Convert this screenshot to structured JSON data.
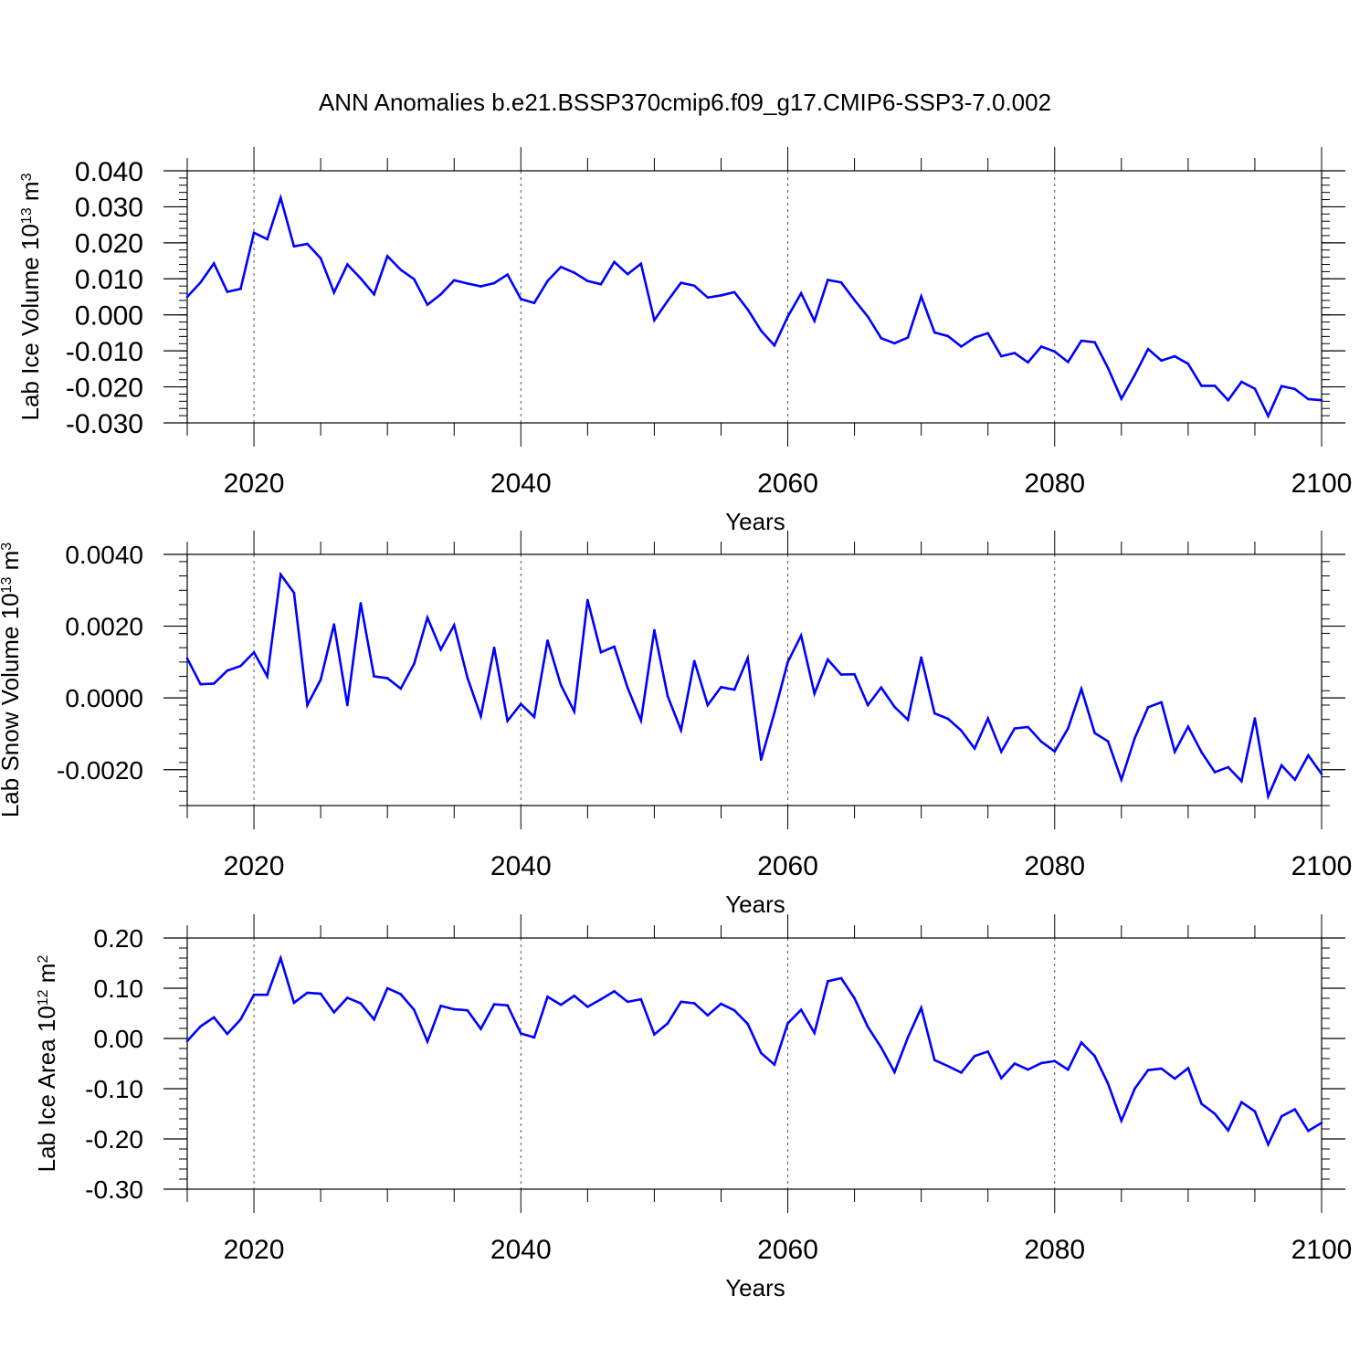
{
  "title": "ANN Anomalies b.e21.BSSP370cmip6.f09_g17.CMIP6-SSP3-7.0.002",
  "line_color": "#0000ff",
  "chart_data": [
    {
      "type": "line",
      "title": "",
      "ylabel": "Lab Ice Volume 10",
      "ylabel_sup1": "13",
      "ylabel_unit": " m",
      "ylabel_sup2": "3",
      "xlabel": "Years",
      "xlim": [
        2015,
        2100
      ],
      "ylim": [
        -0.03,
        0.04
      ],
      "yticks": [
        -0.03,
        -0.02,
        -0.01,
        0.0,
        0.01,
        0.02,
        0.03,
        0.04
      ],
      "ytick_labels": [
        "-0.030",
        "-0.020",
        "-0.010",
        "0.000",
        "0.010",
        "0.020",
        "0.030",
        "0.040"
      ],
      "xticks": [
        2020,
        2040,
        2060,
        2080,
        2100
      ],
      "xtick_labels": [
        "2020",
        "2040",
        "2060",
        "2080",
        "2100"
      ],
      "grid": "vertical dashed at major x ticks",
      "series": [
        {
          "x_start": 2015,
          "values": [
            0.005,
            0.009,
            0.0143,
            0.0064,
            0.0072,
            0.0228,
            0.021,
            0.0325,
            0.019,
            0.0197,
            0.0157,
            0.0062,
            0.014,
            0.0101,
            0.0057,
            0.0163,
            0.0125,
            0.0099,
            0.0028,
            0.0057,
            0.0096,
            0.0087,
            0.0079,
            0.0088,
            0.0112,
            0.0044,
            0.0033,
            0.0094,
            0.0133,
            0.0117,
            0.0094,
            0.0085,
            0.0147,
            0.0113,
            0.0142,
            -0.0015,
            0.0039,
            0.0089,
            0.0081,
            0.0048,
            0.0054,
            0.0063,
            0.0015,
            -0.0044,
            -0.0085,
            -0.0005,
            0.006,
            -0.0017,
            0.0097,
            0.009,
            0.0041,
            -0.0005,
            -0.0065,
            -0.0079,
            -0.0063,
            0.0051,
            -0.0049,
            -0.0059,
            -0.0088,
            -0.0063,
            -0.0051,
            -0.0115,
            -0.0106,
            -0.0132,
            -0.0088,
            -0.0102,
            -0.0131,
            -0.0072,
            -0.0076,
            -0.0148,
            -0.0233,
            -0.0167,
            -0.0095,
            -0.0127,
            -0.0115,
            -0.0136,
            -0.0197,
            -0.0197,
            -0.0237,
            -0.0186,
            -0.0205,
            -0.0281,
            -0.0198,
            -0.0206,
            -0.0234,
            -0.0237
          ]
        }
      ]
    },
    {
      "type": "line",
      "title": "",
      "ylabel": "Lab Snow Volume 10",
      "ylabel_sup1": "13",
      "ylabel_unit": " m",
      "ylabel_sup2": "3",
      "xlabel": "Years",
      "xlim": [
        2015,
        2100
      ],
      "ylim": [
        -0.003,
        0.004
      ],
      "yticks": [
        -0.002,
        0.0,
        0.002,
        0.004
      ],
      "ytick_labels": [
        "-0.0020",
        "0.0000",
        "0.0020",
        "0.0040"
      ],
      "xticks": [
        2020,
        2040,
        2060,
        2080,
        2100
      ],
      "xtick_labels": [
        "2020",
        "2040",
        "2060",
        "2080",
        "2100"
      ],
      "grid": "vertical dashed at major x ticks",
      "series": [
        {
          "x_start": 2015,
          "values": [
            0.0011,
            0.00038,
            0.0004,
            0.00076,
            0.00089,
            0.00127,
            0.0006,
            0.00344,
            0.00293,
            -0.0002,
            0.00051,
            0.00205,
            -0.0002,
            0.00264,
            0.0006,
            0.00055,
            0.00026,
            0.00095,
            0.00224,
            0.00135,
            0.00203,
            0.00056,
            -0.00051,
            0.0014,
            -0.00064,
            -0.00017,
            -0.00053,
            0.0016,
            0.00036,
            -0.00038,
            0.00273,
            0.00127,
            0.00143,
            0.00028,
            -0.00063,
            0.00189,
            5e-05,
            -0.0009,
            0.00103,
            -0.0002,
            0.0003,
            0.00023,
            0.00111,
            -0.00172,
            -0.00041,
            0.001,
            0.00174,
            0.00012,
            0.00107,
            0.00065,
            0.00066,
            -0.0002,
            0.00029,
            -0.00025,
            -0.00061,
            0.00113,
            -0.00043,
            -0.00058,
            -0.00091,
            -0.00141,
            -0.00057,
            -0.0015,
            -0.00085,
            -0.00081,
            -0.00122,
            -0.00149,
            -0.00085,
            0.00025,
            -0.00098,
            -0.00121,
            -0.00228,
            -0.00112,
            -0.00026,
            -0.00012,
            -0.0015,
            -0.0008,
            -0.00151,
            -0.00207,
            -0.00193,
            -0.00232,
            -0.00057,
            -0.00274,
            -0.00188,
            -0.00228,
            -0.0016,
            -0.00212
          ]
        }
      ]
    },
    {
      "type": "line",
      "title": "",
      "ylabel": "Lab Ice Area 10",
      "ylabel_sup1": "12",
      "ylabel_unit": " m",
      "ylabel_sup2": "2",
      "xlabel": "Years",
      "xlim": [
        2015,
        2100
      ],
      "ylim": [
        -0.3,
        0.2
      ],
      "yticks": [
        -0.3,
        -0.2,
        -0.1,
        0.0,
        0.1,
        0.2
      ],
      "ytick_labels": [
        "-0.30",
        "-0.20",
        "-0.10",
        "0.00",
        "0.10",
        "0.20"
      ],
      "xticks": [
        2020,
        2040,
        2060,
        2080,
        2100
      ],
      "xtick_labels": [
        "2020",
        "2040",
        "2060",
        "2080",
        "2100"
      ],
      "grid": "vertical dashed at major x ticks",
      "series": [
        {
          "x_start": 2015,
          "values": [
            -0.005,
            0.024,
            0.042,
            0.009,
            0.038,
            0.087,
            0.087,
            0.16,
            0.071,
            0.091,
            0.089,
            0.052,
            0.081,
            0.07,
            0.038,
            0.1,
            0.088,
            0.057,
            -0.006,
            0.065,
            0.058,
            0.056,
            0.019,
            0.068,
            0.066,
            0.01,
            0.002,
            0.083,
            0.067,
            0.085,
            0.063,
            0.078,
            0.094,
            0.073,
            0.078,
            0.008,
            0.03,
            0.073,
            0.07,
            0.046,
            0.069,
            0.056,
            0.029,
            -0.029,
            -0.052,
            0.03,
            0.057,
            0.011,
            0.114,
            0.12,
            0.08,
            0.023,
            -0.018,
            -0.067,
            0.002,
            0.061,
            -0.043,
            -0.055,
            -0.068,
            -0.035,
            -0.026,
            -0.079,
            -0.05,
            -0.062,
            -0.049,
            -0.045,
            -0.062,
            -0.008,
            -0.035,
            -0.09,
            -0.164,
            -0.1,
            -0.063,
            -0.06,
            -0.08,
            -0.059,
            -0.13,
            -0.15,
            -0.183,
            -0.127,
            -0.145,
            -0.211,
            -0.155,
            -0.141,
            -0.184,
            -0.168
          ]
        }
      ]
    }
  ]
}
